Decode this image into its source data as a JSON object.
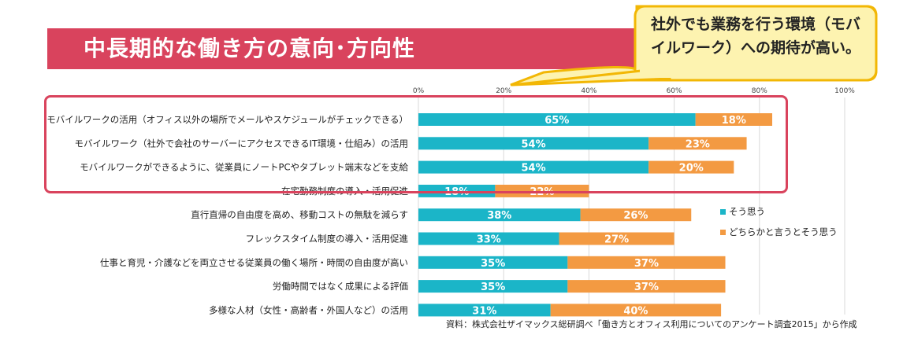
{
  "banner": {
    "title": "中長期的な働き方の意向･方向性"
  },
  "callout": {
    "lines": [
      "社外でも業務を行う環境（モバ",
      "イルワーク）への期待が高い。"
    ]
  },
  "source": "資料：株式会社ザイマックス総研調べ「働き方とオフィス利用についてのアンケート調査2015」から作成",
  "colors": {
    "series1": "#1bb5c8",
    "series2": "#f39a42",
    "banner": "#d9435d",
    "callout_fill": "#fdf3b0",
    "callout_border": "#f2b705"
  },
  "chart_data": {
    "type": "bar",
    "orientation": "horizontal",
    "stacked": true,
    "xlim": [
      0,
      100
    ],
    "x_ticks": [
      "0%",
      "20%",
      "40%",
      "60%",
      "80%",
      "100%"
    ],
    "grid": true,
    "legend_position": "right",
    "categories": [
      "モバイルワークの活用（オフィス以外の場所でメールやスケジュールがチェックできる）",
      "モバイルワーク（社外で会社のサーバーにアクセスできるIT環境・仕組み）の活用",
      "モバイルワークができるように、従業員にノートPCやタブレット端末などを支給",
      "在宅勤務制度の導入・活用促進",
      "直行直帰の自由度を高め、移動コストの無駄を減らす",
      "フレックスタイム制度の導入・活用促進",
      "仕事と育児・介護などを両立させる従業員の働く場所・時間の自由度が高い",
      "労働時間ではなく成果による評価",
      "多様な人材（女性・高齢者・外国人など）の活用"
    ],
    "series": [
      {
        "name": "そう思う",
        "values": [
          65,
          54,
          54,
          18,
          38,
          33,
          35,
          35,
          31
        ]
      },
      {
        "name": "どちらかと言うとそう思う",
        "values": [
          18,
          23,
          20,
          22,
          26,
          27,
          37,
          37,
          40
        ]
      }
    ],
    "highlighted_categories": [
      0,
      1,
      2,
      3
    ]
  }
}
